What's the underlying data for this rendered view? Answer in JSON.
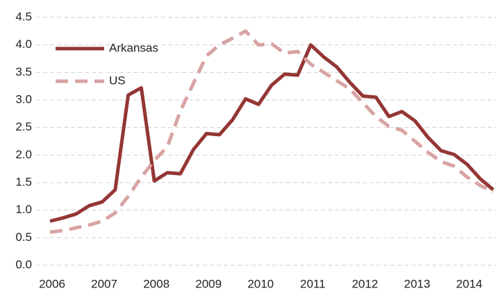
{
  "chart_data": {
    "type": "line",
    "x": [
      2006,
      2006.25,
      2006.5,
      2006.75,
      2007,
      2007.25,
      2007.5,
      2007.75,
      2008,
      2008.25,
      2008.5,
      2008.75,
      2009,
      2009.25,
      2009.5,
      2009.75,
      2010,
      2010.25,
      2010.5,
      2010.75,
      2011,
      2011.25,
      2011.5,
      2011.75,
      2012,
      2012.25,
      2012.5,
      2012.75,
      2013,
      2013.25,
      2013.5,
      2013.75,
      2014,
      2014.25,
      2014.5
    ],
    "series": [
      {
        "name": "Arkansas",
        "color": "#943634",
        "dashed": false,
        "values": [
          0.8,
          0.86,
          0.93,
          1.08,
          1.15,
          1.37,
          3.09,
          3.22,
          1.53,
          1.68,
          1.66,
          2.1,
          2.39,
          2.37,
          2.64,
          3.02,
          2.92,
          3.27,
          3.47,
          3.45,
          4.0,
          3.78,
          3.6,
          3.32,
          3.07,
          3.05,
          2.7,
          2.79,
          2.62,
          2.32,
          2.08,
          2.01,
          1.83,
          1.57,
          1.37
        ]
      },
      {
        "name": "US",
        "color": "#d9a3a3",
        "dashed": true,
        "values": [
          0.6,
          0.63,
          0.68,
          0.73,
          0.8,
          0.95,
          1.25,
          1.6,
          1.9,
          2.15,
          2.8,
          3.3,
          3.8,
          4.0,
          4.12,
          4.25,
          4.0,
          4.02,
          3.85,
          3.88,
          3.65,
          3.5,
          3.35,
          3.2,
          2.95,
          2.7,
          2.52,
          2.45,
          2.25,
          2.05,
          1.88,
          1.8,
          1.6,
          1.45,
          1.33
        ]
      }
    ],
    "xlim": [
      2006,
      2014.5
    ],
    "xticks": [
      2006,
      2007,
      2008,
      2009,
      2010,
      2011,
      2012,
      2013,
      2014
    ],
    "ylim": [
      0,
      4.5
    ],
    "yticks": [
      {
        "value": 0,
        "label": "0.0"
      },
      0.5,
      {
        "value": 1,
        "label": "1.0"
      },
      1.5,
      {
        "value": 2,
        "label": "2.0"
      },
      2.5,
      {
        "value": 3,
        "label": "3.0"
      },
      3.5,
      {
        "value": 4,
        "label": "4.0"
      },
      4.5
    ],
    "grid": true,
    "legend": "upper-left"
  }
}
